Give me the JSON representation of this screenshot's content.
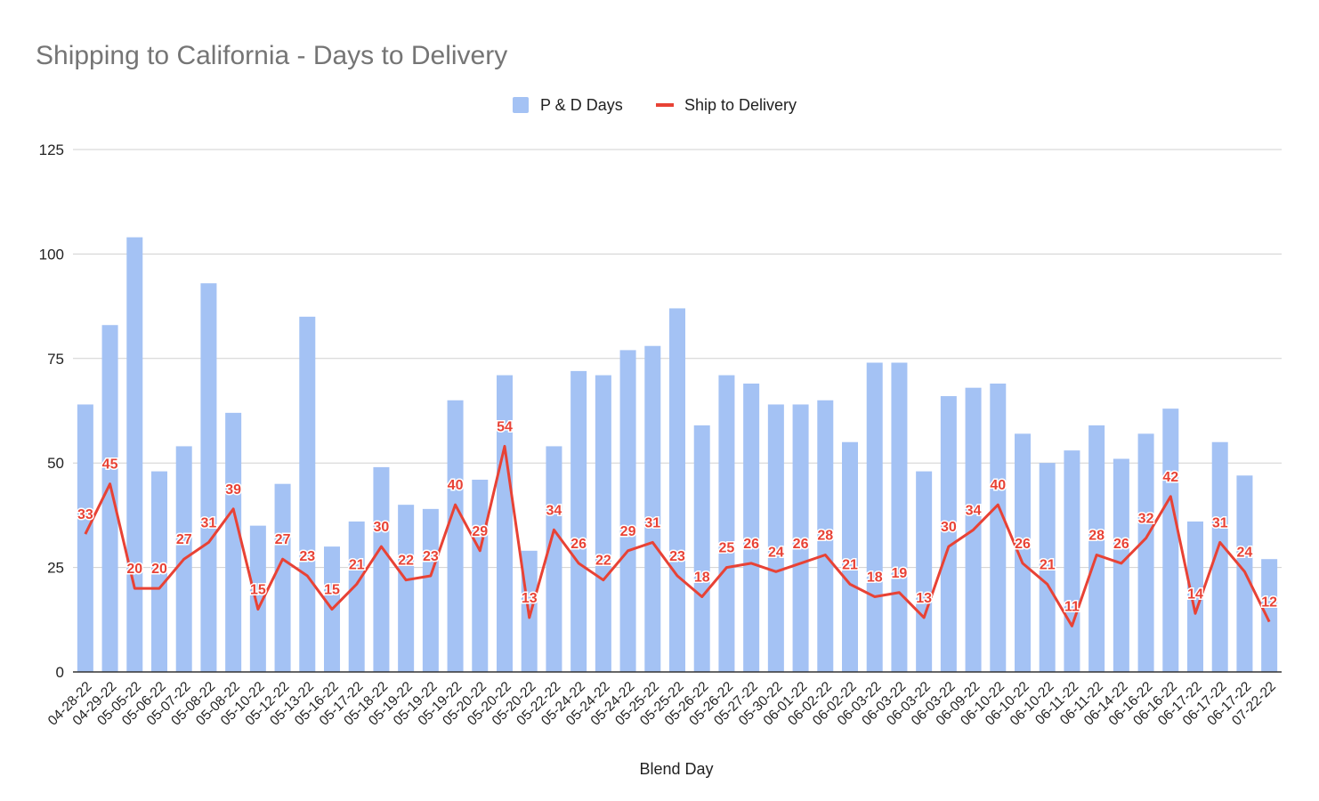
{
  "chart_data": {
    "type": "bar+line",
    "title": "Shipping to California - Days to Delivery",
    "xlabel": "Blend Day",
    "ylabel": "",
    "ylim": [
      0,
      125
    ],
    "yticks": [
      0,
      25,
      50,
      75,
      100,
      125
    ],
    "grid": true,
    "legend_position": "top-center",
    "colors": {
      "bar": "#a4c2f4",
      "line": "#e84235"
    },
    "categories": [
      "04-28-22",
      "04-29-22",
      "05-05-22",
      "05-06-22",
      "05-07-22",
      "05-08-22",
      "05-08-22",
      "05-10-22",
      "05-12-22",
      "05-13-22",
      "05-16-22",
      "05-17-22",
      "05-18-22",
      "05-19-22",
      "05-19-22",
      "05-19-22",
      "05-20-22",
      "05-20-22",
      "05-20-22",
      "05-22-22",
      "05-24-22",
      "05-24-22",
      "05-24-22",
      "05-25-22",
      "05-25-22",
      "05-26-22",
      "05-26-22",
      "05-27-22",
      "05-30-22",
      "06-01-22",
      "06-02-22",
      "06-02-22",
      "06-03-22",
      "06-03-22",
      "06-03-22",
      "06-03-22",
      "06-09-22",
      "06-10-22",
      "06-10-22",
      "06-10-22",
      "06-11-22",
      "06-11-22",
      "06-14-22",
      "06-16-22",
      "06-16-22",
      "06-17-22",
      "06-17-22",
      "06-17-22",
      "07-22-22"
    ],
    "series": [
      {
        "name": "P & D Days",
        "type": "bar",
        "values": [
          64,
          83,
          104,
          48,
          54,
          93,
          62,
          35,
          45,
          85,
          30,
          36,
          49,
          40,
          39,
          65,
          46,
          71,
          29,
          54,
          72,
          71,
          77,
          78,
          87,
          59,
          71,
          69,
          64,
          64,
          65,
          55,
          74,
          74,
          48,
          66,
          68,
          69,
          57,
          50,
          53,
          59,
          51,
          57,
          63,
          36,
          55,
          47,
          27
        ]
      },
      {
        "name": "Ship to Delivery",
        "type": "line",
        "data_labels": true,
        "values": [
          33,
          45,
          20,
          20,
          27,
          31,
          39,
          15,
          27,
          23,
          15,
          21,
          30,
          22,
          23,
          40,
          29,
          54,
          13,
          34,
          26,
          22,
          29,
          31,
          23,
          18,
          25,
          26,
          24,
          26,
          28,
          21,
          18,
          19,
          13,
          30,
          34,
          40,
          26,
          21,
          11,
          28,
          26,
          32,
          42,
          14,
          31,
          24,
          12
        ]
      }
    ]
  }
}
